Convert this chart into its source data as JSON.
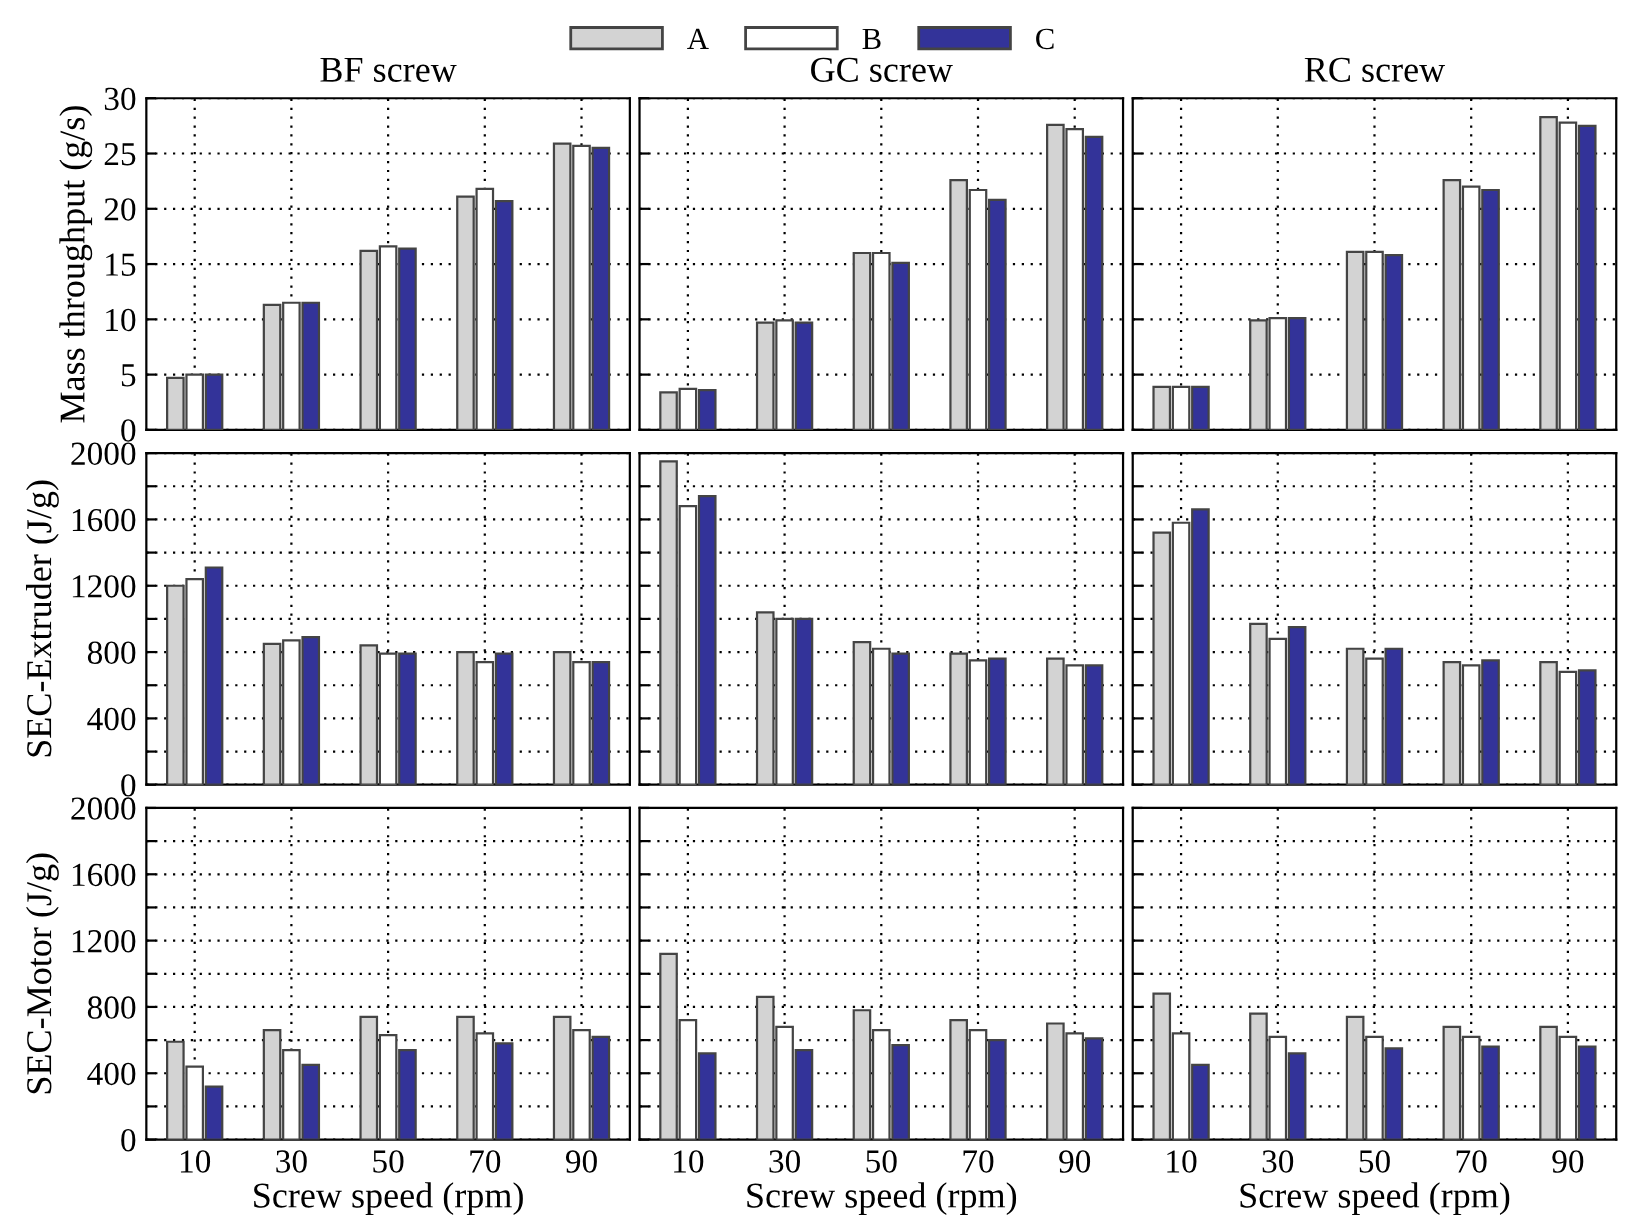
{
  "chart_data": [
    {
      "type": "bar",
      "title": "BF screw",
      "ylabel": "Mass throughput (g/s)",
      "categories": [
        "10",
        "30",
        "50",
        "70",
        "90"
      ],
      "ylim": [
        0,
        30
      ],
      "yticks": [
        0,
        5,
        10,
        15,
        20,
        25,
        30
      ],
      "grid": true,
      "legend": "top",
      "tick_labels": "y",
      "series": [
        {
          "name": "A",
          "color": "#d3d3d3",
          "values": [
            4.7,
            11.3,
            16.2,
            21.1,
            25.9
          ]
        },
        {
          "name": "B",
          "color": "#ffffff",
          "values": [
            5.0,
            11.5,
            16.6,
            21.8,
            25.7
          ]
        },
        {
          "name": "C",
          "color": "#333399",
          "values": [
            5.0,
            11.5,
            16.4,
            20.7,
            25.5
          ]
        }
      ]
    },
    {
      "type": "bar",
      "title": "GC screw",
      "categories": [
        "10",
        "30",
        "50",
        "70",
        "90"
      ],
      "ylim": [
        0,
        30
      ],
      "yticks": [
        0,
        5,
        10,
        15,
        20,
        25,
        30
      ],
      "grid": true,
      "tick_labels": false,
      "series": [
        {
          "color": "#d3d3d3",
          "values": [
            3.4,
            9.7,
            16.0,
            22.6,
            27.6
          ]
        },
        {
          "color": "#ffffff",
          "values": [
            3.7,
            9.9,
            16.0,
            21.7,
            27.2
          ]
        },
        {
          "color": "#333399",
          "values": [
            3.6,
            9.7,
            15.1,
            20.8,
            26.5
          ]
        }
      ]
    },
    {
      "type": "bar",
      "title": "RC screw",
      "categories": [
        "10",
        "30",
        "50",
        "70",
        "90"
      ],
      "ylim": [
        0,
        30
      ],
      "yticks": [
        0,
        5,
        10,
        15,
        20,
        25,
        30
      ],
      "grid": true,
      "tick_labels": false,
      "series": [
        {
          "color": "#d3d3d3",
          "values": [
            3.9,
            9.9,
            16.1,
            22.6,
            28.3
          ]
        },
        {
          "color": "#ffffff",
          "values": [
            3.9,
            10.1,
            16.1,
            22.0,
            27.8
          ]
        },
        {
          "color": "#333399",
          "values": [
            3.9,
            10.1,
            15.8,
            21.7,
            27.5
          ]
        }
      ]
    },
    {
      "type": "bar",
      "ylabel": "SEC-Extruder (J/g)",
      "categories": [
        "10",
        "30",
        "50",
        "70",
        "90"
      ],
      "ylim": [
        0,
        2000
      ],
      "yticks": [
        0,
        {
          "value": 200,
          "label": null
        },
        400,
        {
          "value": 600,
          "label": null
        },
        800,
        {
          "value": 1000,
          "label": null
        },
        1200,
        {
          "value": 1400,
          "label": null
        },
        1600,
        {
          "value": 1800,
          "label": null
        },
        2000
      ],
      "grid": true,
      "tick_labels": "y",
      "series": [
        {
          "color": "#d3d3d3",
          "values": [
            1200,
            850,
            840,
            800,
            800
          ]
        },
        {
          "color": "#ffffff",
          "values": [
            1240,
            870,
            790,
            740,
            740
          ]
        },
        {
          "color": "#333399",
          "values": [
            1310,
            890,
            790,
            790,
            740
          ]
        }
      ]
    },
    {
      "type": "bar",
      "categories": [
        "10",
        "30",
        "50",
        "70",
        "90"
      ],
      "ylim": [
        0,
        2000
      ],
      "yticks": [
        0,
        {
          "value": 200,
          "label": null
        },
        400,
        {
          "value": 600,
          "label": null
        },
        800,
        {
          "value": 1000,
          "label": null
        },
        1200,
        {
          "value": 1400,
          "label": null
        },
        1600,
        {
          "value": 1800,
          "label": null
        },
        2000
      ],
      "grid": true,
      "tick_labels": false,
      "series": [
        {
          "color": "#d3d3d3",
          "values": [
            1950,
            1040,
            860,
            790,
            760
          ]
        },
        {
          "color": "#ffffff",
          "values": [
            1680,
            1000,
            820,
            750,
            720
          ]
        },
        {
          "color": "#333399",
          "values": [
            1740,
            1000,
            790,
            760,
            720
          ]
        }
      ]
    },
    {
      "type": "bar",
      "categories": [
        "10",
        "30",
        "50",
        "70",
        "90"
      ],
      "ylim": [
        0,
        2000
      ],
      "yticks": [
        0,
        {
          "value": 200,
          "label": null
        },
        400,
        {
          "value": 600,
          "label": null
        },
        800,
        {
          "value": 1000,
          "label": null
        },
        1200,
        {
          "value": 1400,
          "label": null
        },
        1600,
        {
          "value": 1800,
          "label": null
        },
        2000
      ],
      "grid": true,
      "tick_labels": false,
      "series": [
        {
          "color": "#d3d3d3",
          "values": [
            1520,
            970,
            820,
            740,
            740
          ]
        },
        {
          "color": "#ffffff",
          "values": [
            1580,
            880,
            760,
            720,
            680
          ]
        },
        {
          "color": "#333399",
          "values": [
            1660,
            950,
            820,
            750,
            690
          ]
        }
      ]
    },
    {
      "type": "bar",
      "ylabel": "SEC-Motor (J/g)",
      "xlabel": "Screw speed (rpm)",
      "categories": [
        "10",
        "30",
        "50",
        "70",
        "90"
      ],
      "ylim": [
        0,
        2000
      ],
      "yticks": [
        0,
        {
          "value": 200,
          "label": null
        },
        400,
        {
          "value": 600,
          "label": null
        },
        800,
        {
          "value": 1000,
          "label": null
        },
        1200,
        {
          "value": 1400,
          "label": null
        },
        1600,
        {
          "value": 1800,
          "label": null
        },
        2000
      ],
      "grid": true,
      "series": [
        {
          "color": "#d3d3d3",
          "values": [
            590,
            660,
            740,
            740,
            740
          ]
        },
        {
          "color": "#ffffff",
          "values": [
            440,
            540,
            630,
            640,
            660
          ]
        },
        {
          "color": "#333399",
          "values": [
            320,
            450,
            540,
            580,
            620
          ]
        }
      ]
    },
    {
      "type": "bar",
      "xlabel": "Screw speed (rpm)",
      "categories": [
        "10",
        "30",
        "50",
        "70",
        "90"
      ],
      "ylim": [
        0,
        2000
      ],
      "yticks": [
        0,
        {
          "value": 200,
          "label": null
        },
        400,
        {
          "value": 600,
          "label": null
        },
        800,
        {
          "value": 1000,
          "label": null
        },
        1200,
        {
          "value": 1400,
          "label": null
        },
        1600,
        {
          "value": 1800,
          "label": null
        },
        2000
      ],
      "grid": true,
      "tick_labels": "x",
      "series": [
        {
          "color": "#d3d3d3",
          "values": [
            1120,
            860,
            780,
            720,
            700
          ]
        },
        {
          "color": "#ffffff",
          "values": [
            720,
            680,
            660,
            660,
            640
          ]
        },
        {
          "color": "#333399",
          "values": [
            520,
            540,
            570,
            600,
            610
          ]
        }
      ]
    },
    {
      "type": "bar",
      "xlabel": "Screw speed (rpm)",
      "categories": [
        "10",
        "30",
        "50",
        "70",
        "90"
      ],
      "ylim": [
        0,
        2000
      ],
      "yticks": [
        0,
        {
          "value": 200,
          "label": null
        },
        400,
        {
          "value": 600,
          "label": null
        },
        800,
        {
          "value": 1000,
          "label": null
        },
        1200,
        {
          "value": 1400,
          "label": null
        },
        1600,
        {
          "value": 1800,
          "label": null
        },
        2000
      ],
      "grid": true,
      "tick_labels": "x",
      "series": [
        {
          "color": "#d3d3d3",
          "values": [
            880,
            760,
            740,
            680,
            680
          ]
        },
        {
          "color": "#ffffff",
          "values": [
            640,
            620,
            620,
            620,
            620
          ]
        },
        {
          "color": "#333399",
          "values": [
            450,
            520,
            550,
            560,
            560
          ]
        }
      ]
    }
  ]
}
